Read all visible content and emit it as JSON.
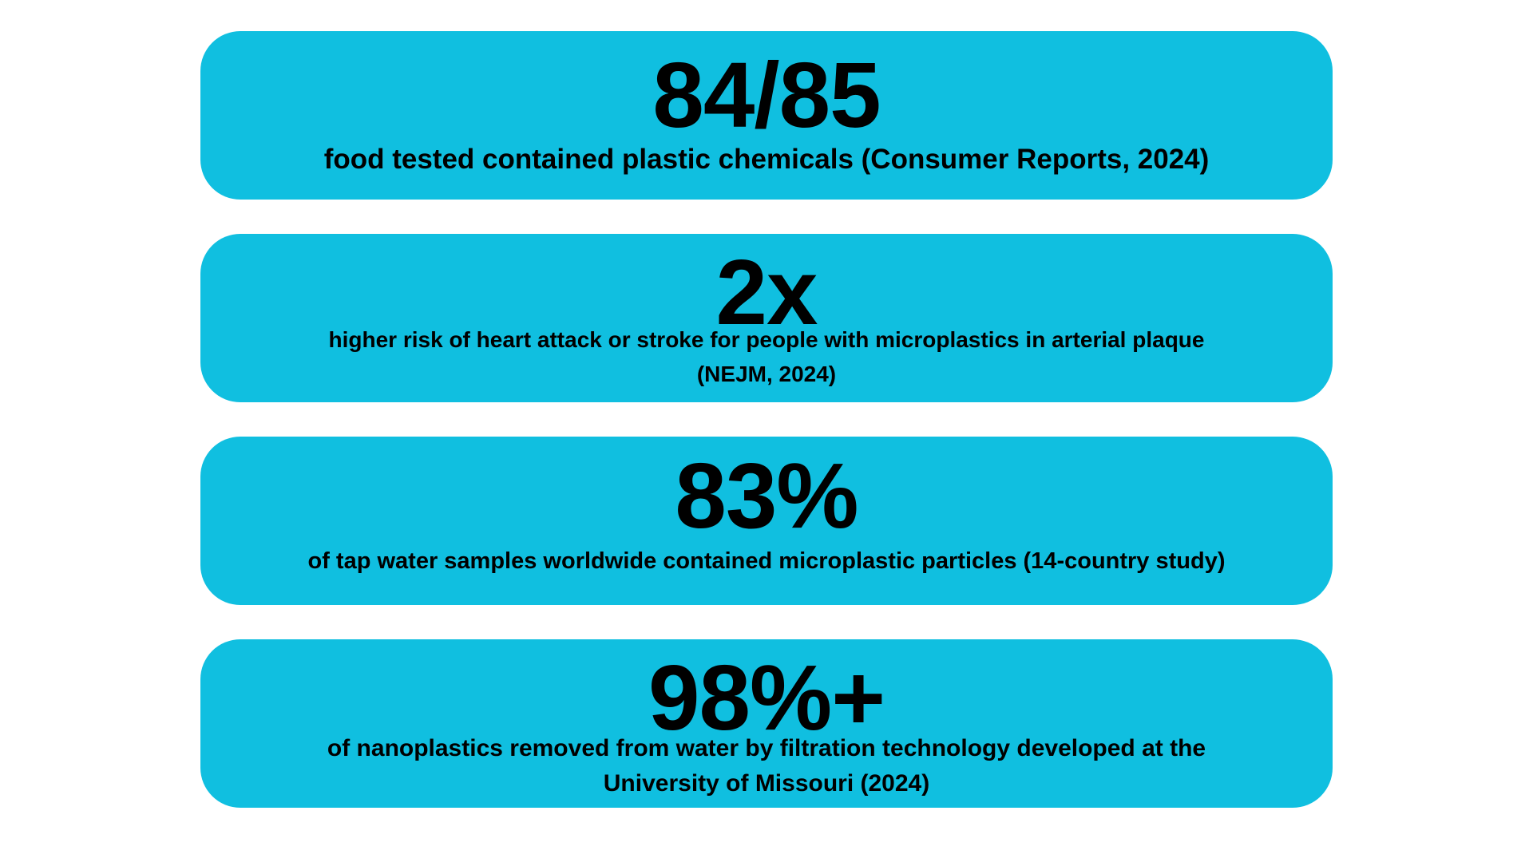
{
  "colors": {
    "background": "#ffffff",
    "card": "#10BFE0",
    "text": "#000000"
  },
  "cards": [
    {
      "stat": "84/85",
      "description_lines": [
        "food tested contained plastic chemicals (Consumer Reports, 2024)"
      ]
    },
    {
      "stat": "2x",
      "description_lines": [
        "higher risk of heart attack or stroke for people with microplastics in arterial plaque",
        "(NEJM, 2024)"
      ]
    },
    {
      "stat": "83%",
      "description_lines": [
        "of tap water samples worldwide contained microplastic particles (14-country study)"
      ]
    },
    {
      "stat": "98%+",
      "description_lines": [
        "of nanoplastics removed from water by filtration technology developed at the",
        "University of Missouri (2024)"
      ]
    }
  ]
}
